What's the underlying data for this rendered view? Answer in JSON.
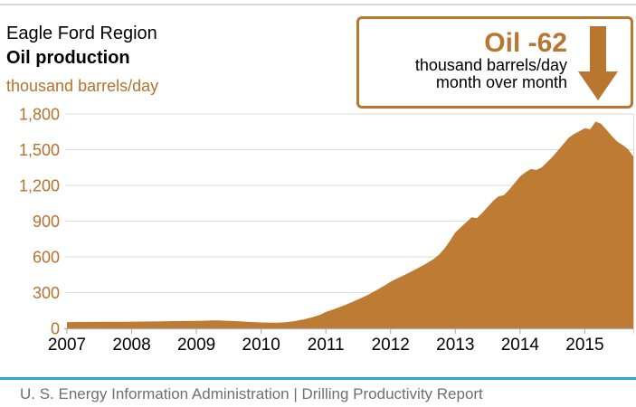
{
  "header": {
    "title_line1": "Eagle Ford Region",
    "title_line2": "Oil production",
    "units_label": "thousand barrels/day"
  },
  "callout": {
    "headline": "Oil -62",
    "line1": "thousand barrels/day",
    "line2": "month over month",
    "arrow_direction": "down"
  },
  "footer": {
    "text": "U. S. Energy Information Administration  |  Drilling Productivity Report"
  },
  "colors": {
    "accent_brown": "#b5722c",
    "area_fill": "#be7b33",
    "gridline": "#dbdbdb",
    "axis": "#a9a9a9",
    "x_label": "#000000",
    "footer_line_blue": "#2ba7df",
    "footer_text": "#6f6f6f",
    "top_rule": "#d9d9d9"
  },
  "chart_data": {
    "type": "area",
    "title": "Eagle Ford Region Oil production",
    "ylabel": "thousand barrels/day",
    "xlabel": "",
    "grid": "horizontal",
    "legend": "none",
    "ylim": [
      0,
      1800
    ],
    "y_tick_values": [
      0,
      300,
      600,
      900,
      1200,
      1500,
      1800
    ],
    "y_tick_labels": [
      "0",
      "300",
      "600",
      "900",
      "1,200",
      "1,500",
      "1,800"
    ],
    "x_tick_labels": [
      "2007",
      "2008",
      "2009",
      "2010",
      "2011",
      "2012",
      "2013",
      "2014",
      "2015"
    ],
    "frequency": "monthly",
    "x_range": [
      "2007-01",
      "2015-10"
    ],
    "series_name": "Oil production, thousand barrels/day",
    "month_over_month_change": -62,
    "values": [
      52,
      52,
      53,
      53,
      54,
      54,
      54,
      55,
      55,
      55,
      55,
      55,
      56,
      56,
      57,
      57,
      58,
      58,
      59,
      60,
      61,
      61,
      62,
      62,
      63,
      64,
      65,
      66,
      66,
      65,
      63,
      61,
      59,
      56,
      53,
      51,
      49,
      48,
      47,
      47,
      49,
      53,
      59,
      67,
      76,
      87,
      100,
      115,
      138,
      153,
      169,
      186,
      204,
      223,
      243,
      264,
      286,
      310,
      336,
      363,
      392,
      414,
      436,
      458,
      480,
      504,
      528,
      554,
      582,
      620,
      670,
      735,
      805,
      848,
      890,
      932,
      926,
      970,
      1020,
      1070,
      1108,
      1118,
      1165,
      1220,
      1275,
      1310,
      1338,
      1330,
      1350,
      1395,
      1440,
      1492,
      1546,
      1600,
      1632,
      1655,
      1680,
      1672,
      1735,
      1718,
      1668,
      1616,
      1568,
      1540,
      1505,
      1443
    ]
  }
}
